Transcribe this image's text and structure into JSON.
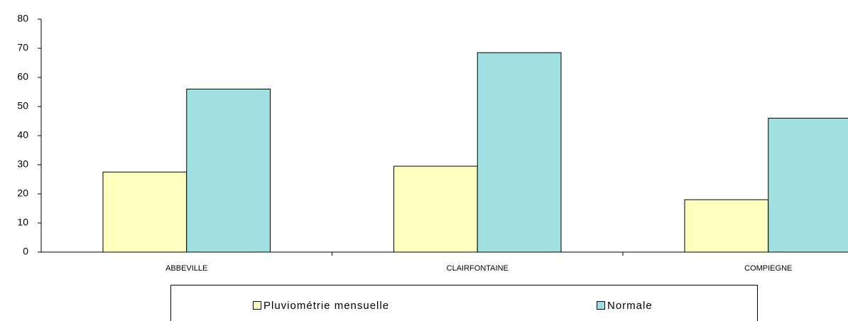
{
  "chart_data": {
    "type": "bar",
    "categories": [
      "ABBEVILLE",
      "CLAIRFONTAINE",
      "COMPIEGNE"
    ],
    "series": [
      {
        "name": "Pluviométrie mensuelle",
        "color": "#ffffc0",
        "values": [
          27.5,
          29.5,
          18
        ]
      },
      {
        "name": "Normale",
        "color": "#a0e0e0",
        "values": [
          56,
          68.5,
          46
        ]
      }
    ],
    "ylim": [
      0,
      80
    ],
    "yticks": [
      0,
      10,
      20,
      30,
      40,
      50,
      60,
      70,
      80
    ],
    "grid": false,
    "legend": "bottom"
  }
}
